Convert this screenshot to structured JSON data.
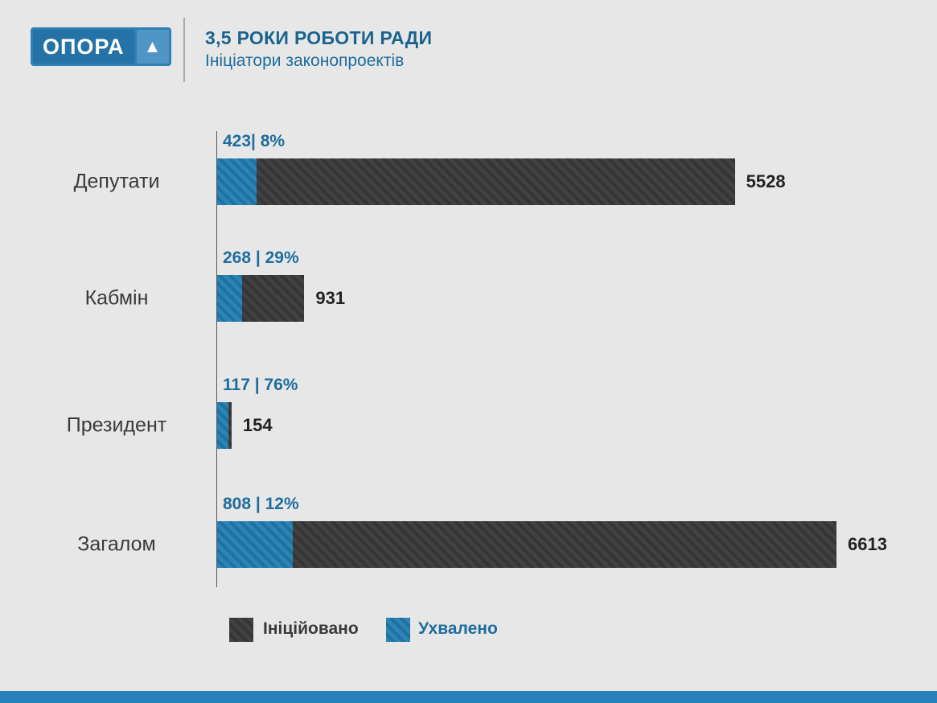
{
  "header": {
    "logo_text": "ОПОРА",
    "logo_triangle": "▲",
    "title": "3,5 РОКИ РОБОТИ РАДИ",
    "subtitle": "Ініціатори законопроектів"
  },
  "chart_data": {
    "type": "bar",
    "orientation": "horizontal",
    "title": "3,5 РОКИ РОБОТИ РАДИ",
    "subtitle": "Ініціатори законопроектів",
    "xlim": [
      0,
      6613
    ],
    "grid": false,
    "legend_position": "bottom",
    "categories": [
      "Депутати",
      "Кабмін",
      "Президент",
      "Загалом"
    ],
    "series": [
      {
        "name": "Ініційовано",
        "color": "#3e3e3e",
        "values": [
          5528,
          931,
          154,
          6613
        ]
      },
      {
        "name": "Ухвалено",
        "color": "#2980b9",
        "values": [
          423,
          268,
          117,
          808
        ]
      }
    ],
    "rows": [
      {
        "category": "Депутати",
        "initiated": 5528,
        "approved": 423,
        "approved_label": "423| 8%",
        "initiated_label": "5528"
      },
      {
        "category": "Кабмін",
        "initiated": 931,
        "approved": 268,
        "approved_label": "268 | 29%",
        "initiated_label": "931"
      },
      {
        "category": "Президент",
        "initiated": 154,
        "approved": 117,
        "approved_label": "117 | 76%",
        "initiated_label": "154"
      },
      {
        "category": "Загалом",
        "initiated": 6613,
        "approved": 808,
        "approved_label": "808 | 12%",
        "initiated_label": "6613"
      }
    ],
    "legend": [
      {
        "label": "Ініційовано",
        "color": "#3e3e3e"
      },
      {
        "label": "Ухвалено",
        "color": "#2980b9"
      }
    ]
  },
  "colors": {
    "background": "#e8e7e7",
    "accent_blue": "#2980b9",
    "title_blue": "#19638f",
    "bar_dark": "#3e3e3e",
    "footer_strip": "#2980b9"
  }
}
